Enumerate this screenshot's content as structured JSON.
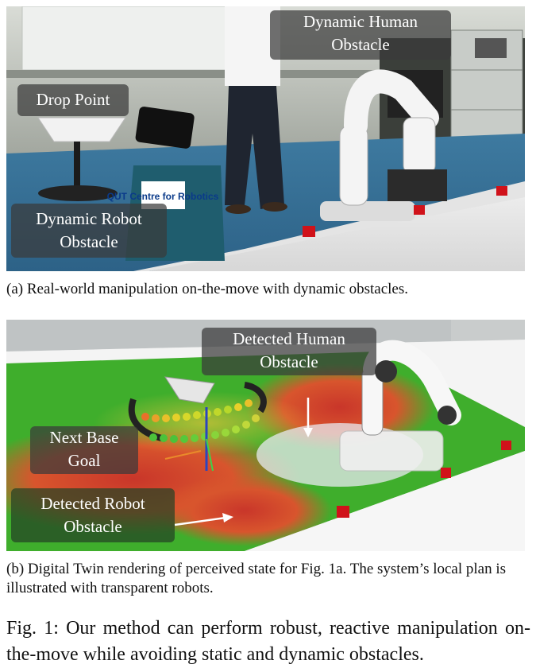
{
  "panel_a": {
    "labels": {
      "human": "Dynamic Human\nObstacle",
      "drop": "Drop Point",
      "robot": "Dynamic Robot\nObstacle"
    },
    "shirt_logo": "QUT Centre for Robotics",
    "caption": "(a) Real-world manipulation on-the-move with dynamic obstacles."
  },
  "panel_b": {
    "labels": {
      "human": "Detected Human\nObstacle",
      "next_base": "Next Base\nGoal",
      "robot": "Detected Robot\nObstacle"
    },
    "caption": "(b) Digital Twin rendering of perceived state for Fig. 1a. The system’s local plan is illustrated with transparent robots."
  },
  "figure_caption": "Fig. 1: Our method can perform robust, reactive manipulation on-the-move while avoiding static and dynamic obstacles.",
  "colors": {
    "obstacle_cube": "#d0121a",
    "costmap_high": "#d43a2a",
    "costmap_low": "#3fae2c",
    "label_bg": "#3a3a3a"
  }
}
